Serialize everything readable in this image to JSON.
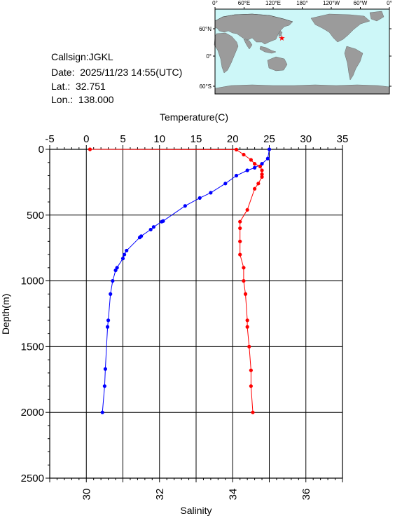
{
  "info": {
    "callsign": "Callsign:JGKL",
    "date": "Date:  2025/11/23 14:55(UTC)",
    "lat": "Lat.:  32.751",
    "lon": "Lon.:  138.000"
  },
  "map": {
    "lon_ticks": [
      "0°",
      "60°E",
      "120°E",
      "180°",
      "120°W",
      "60°W",
      "0°"
    ],
    "lat_ticks": [
      "60°N",
      "0°",
      "60°S"
    ],
    "marker_lat": 32.751,
    "marker_lon": 138.0,
    "ocean_color": "#cdf7f8",
    "land_color": "#9b9b9b",
    "marker_color": "#ff0000"
  },
  "chart_data": {
    "type": "line",
    "ylabel": "Depth(m)",
    "ylim": [
      0,
      2500
    ],
    "yticks": [
      "0",
      "500",
      "1000",
      "1500",
      "2000",
      "2500"
    ],
    "x_top": {
      "label": "Temperature(C)",
      "lim": [
        -5,
        35
      ],
      "ticks": [
        "-5",
        "0",
        "5",
        "10",
        "15",
        "20",
        "25",
        "30",
        "35"
      ]
    },
    "x_bottom": {
      "label": "Salinity",
      "lim": [
        29,
        37
      ],
      "ticks": [
        "30",
        "32",
        "34",
        "36"
      ]
    },
    "series": [
      {
        "axis": "temperature",
        "color": "#0000ff",
        "points": [
          [
            25.0,
            0
          ],
          [
            24.8,
            70
          ],
          [
            24.0,
            110
          ],
          [
            23.0,
            140
          ],
          [
            22.0,
            160
          ],
          [
            20.5,
            200
          ],
          [
            19.0,
            260
          ],
          [
            17.0,
            330
          ],
          [
            15.5,
            370
          ],
          [
            13.5,
            430
          ],
          [
            10.5,
            545
          ],
          [
            10.3,
            550
          ],
          [
            9.2,
            590
          ],
          [
            8.8,
            610
          ],
          [
            7.5,
            660
          ],
          [
            7.3,
            670
          ],
          [
            5.5,
            770
          ],
          [
            5.2,
            800
          ],
          [
            5.0,
            830
          ],
          [
            4.2,
            900
          ],
          [
            4.0,
            920
          ],
          [
            3.6,
            1000
          ],
          [
            3.3,
            1100
          ],
          [
            3.0,
            1300
          ],
          [
            2.9,
            1350
          ],
          [
            2.6,
            1670
          ],
          [
            2.5,
            1800
          ],
          [
            2.2,
            2000
          ]
        ]
      },
      {
        "axis": "salinity",
        "color": "#ff0000",
        "points": [
          [
            30.1,
            0
          ],
          [
            34.1,
            2
          ],
          [
            34.3,
            40
          ],
          [
            34.5,
            80
          ],
          [
            34.6,
            110
          ],
          [
            34.75,
            130
          ],
          [
            34.8,
            160
          ],
          [
            34.8,
            190
          ],
          [
            34.8,
            210
          ],
          [
            34.7,
            260
          ],
          [
            34.6,
            300
          ],
          [
            34.4,
            460
          ],
          [
            34.2,
            550
          ],
          [
            34.2,
            600
          ],
          [
            34.2,
            700
          ],
          [
            34.2,
            800
          ],
          [
            34.3,
            900
          ],
          [
            34.3,
            1000
          ],
          [
            34.35,
            1100
          ],
          [
            34.4,
            1300
          ],
          [
            34.4,
            1350
          ],
          [
            34.45,
            1500
          ],
          [
            34.5,
            1680
          ],
          [
            34.5,
            1800
          ],
          [
            34.55,
            2000
          ]
        ]
      }
    ],
    "grid": true
  }
}
